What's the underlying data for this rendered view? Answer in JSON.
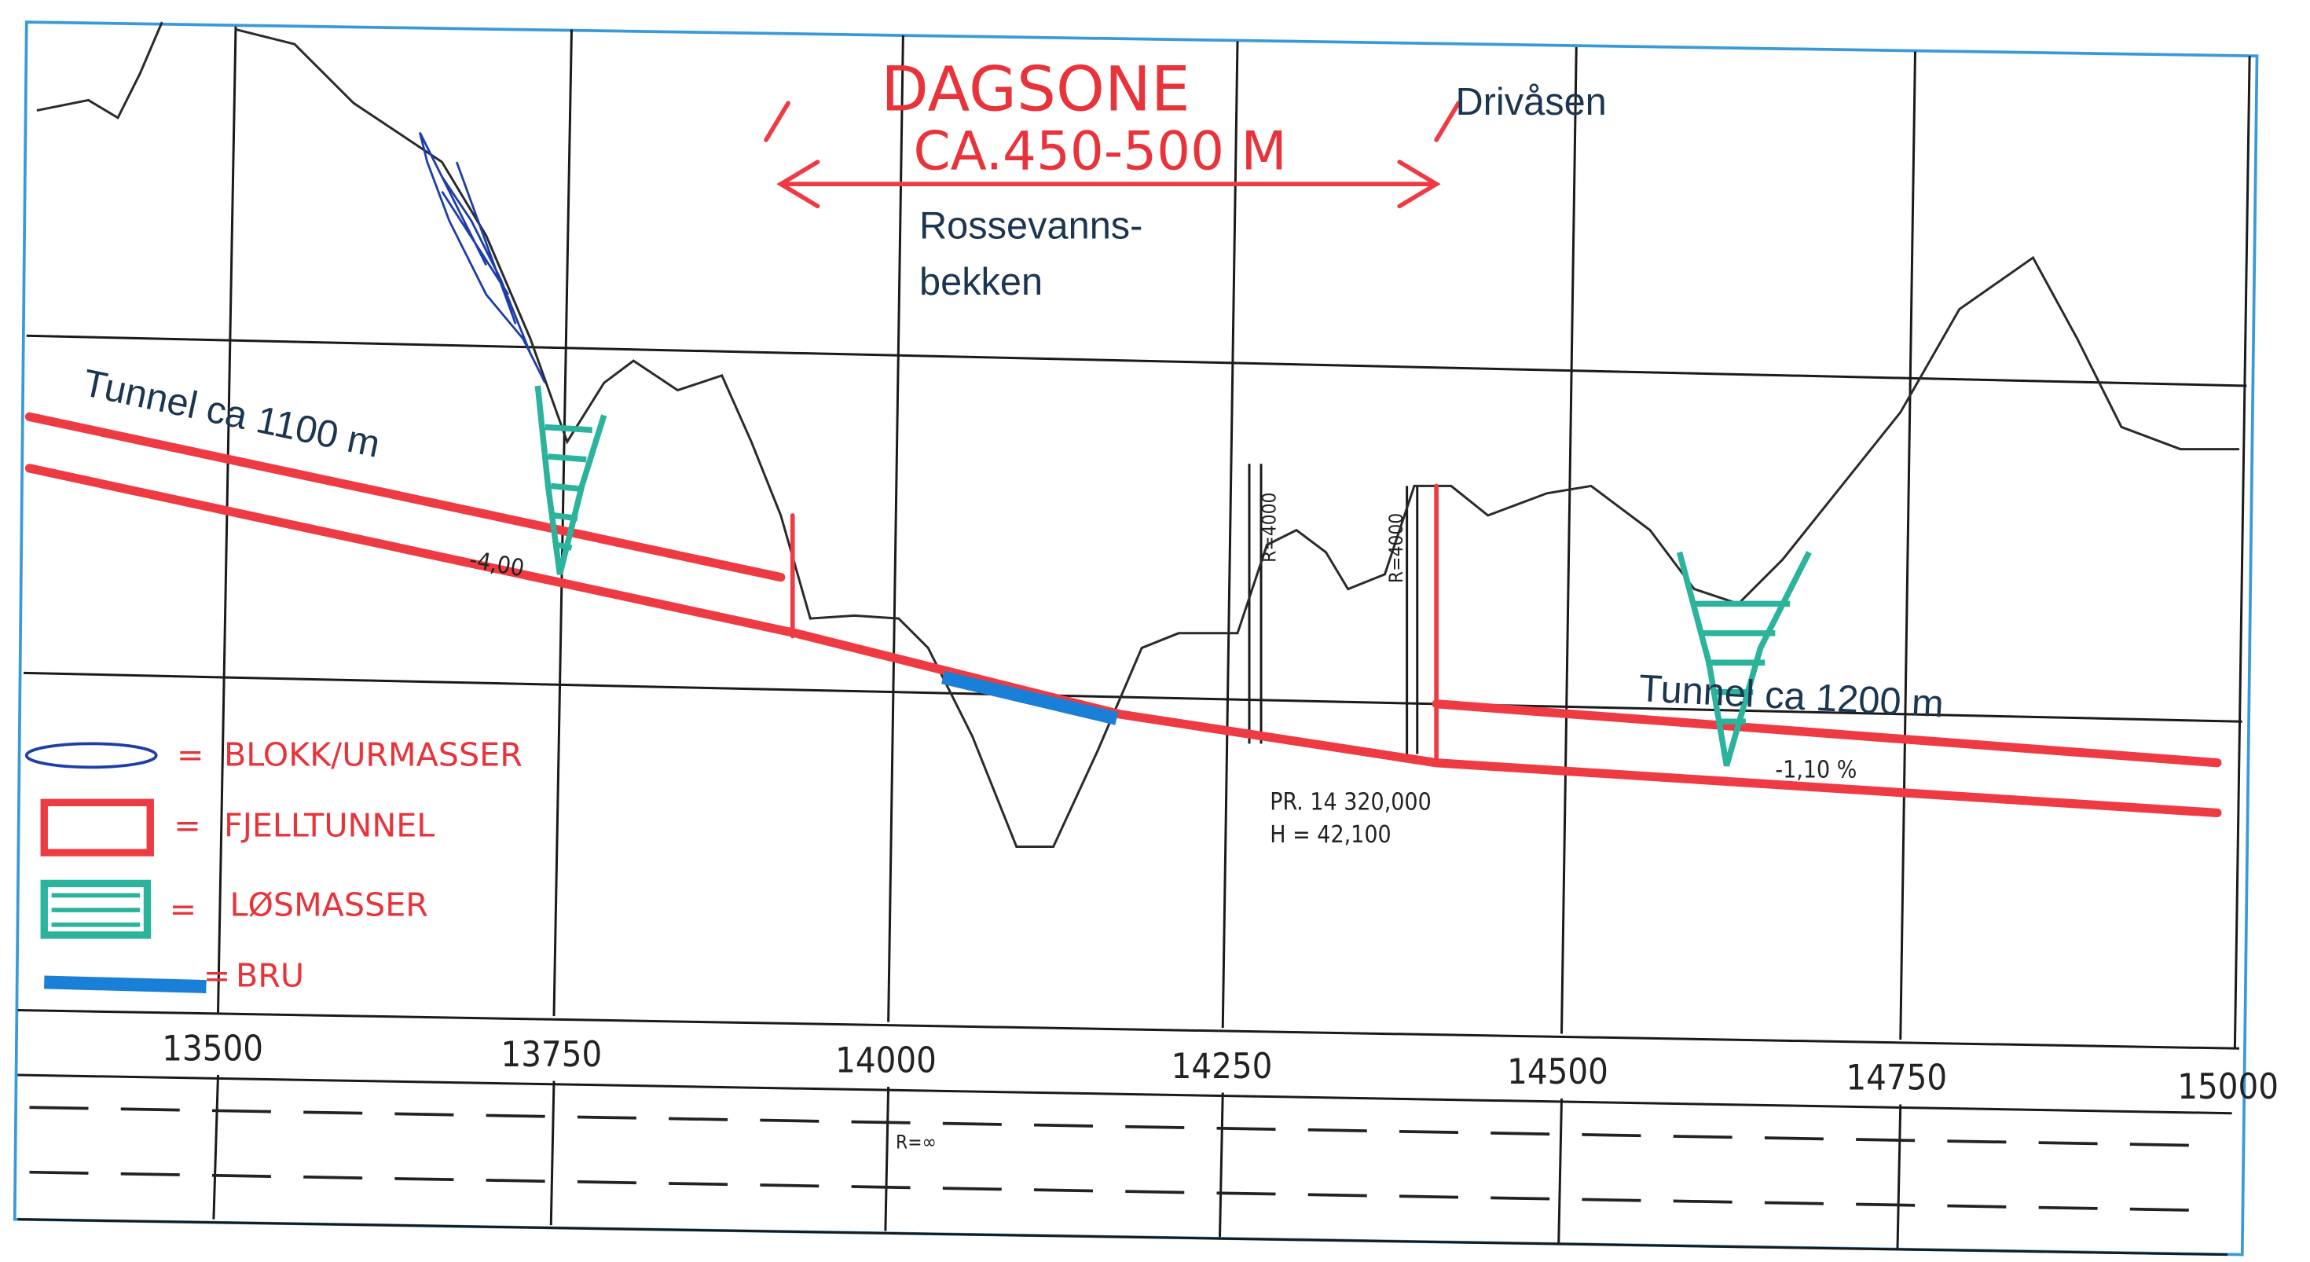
{
  "title": "DAGSONE",
  "subtitle": "CA.450-500 M",
  "places": [
    "Drivåsen",
    "Rossevanns-",
    "bekken"
  ],
  "tunnels": [
    "Tunnel ca 1100 m",
    "Tunnel ca 1200 m"
  ],
  "gradients": [
    "-4,00",
    "-1,10 %"
  ],
  "point": [
    "PR. 14 320,000",
    "H = 42,100"
  ],
  "curves": [
    "R=4000",
    "R=4000",
    "R=∞"
  ],
  "legend": {
    "separator": "=",
    "items": [
      "BLOKK/URMASSER",
      "FJELLTUNNEL",
      "LØSMASSER",
      "BRU"
    ]
  },
  "stations": [
    "13500",
    "13750",
    "14000",
    "14250",
    "14500",
    "14750",
    "15000"
  ]
}
